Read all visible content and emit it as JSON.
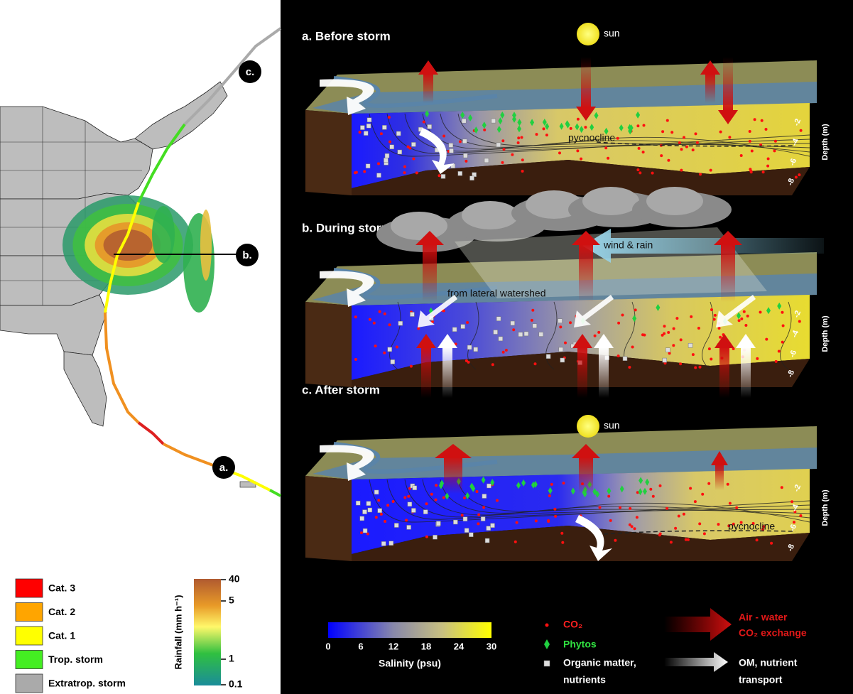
{
  "map": {
    "track_labels": [
      "c.",
      "b.",
      "a."
    ],
    "legend": [
      "Cat. 3",
      "Cat. 2",
      "Cat. 1",
      "Trop. storm",
      "Extratrop. storm"
    ],
    "rainfall_colorbar": {
      "label": "Rainfall (mm h⁻¹)",
      "ticks": [
        "40",
        "5",
        "1",
        "0.1"
      ]
    }
  },
  "panels": [
    {
      "title": "a. Before storm",
      "sun": "sun",
      "pycnocline": "pycnocline",
      "depth_label": "Depth (m)",
      "depth_ticks": [
        "-2",
        "-4",
        "-6",
        "-8"
      ]
    },
    {
      "title": "b. During storm",
      "wind": "wind & rain",
      "lateral": "from lateral watershed",
      "depth_label": "Depth (m)",
      "depth_ticks": [
        "-2",
        "-4",
        "-6",
        "-8"
      ]
    },
    {
      "title": "c. After storm",
      "sun": "sun",
      "pycnocline": "pycnocline",
      "depth_label": "Depth (m)",
      "depth_ticks": [
        "-2",
        "-4",
        "-6",
        "-8"
      ]
    }
  ],
  "legend": {
    "salinity": {
      "label": "Salinity (psu)",
      "ticks": [
        "0",
        "6",
        "12",
        "18",
        "24",
        "30"
      ]
    },
    "co2": "CO₂",
    "phytos": "Phytos",
    "om": [
      "Organic matter,",
      "nutrients"
    ],
    "air_water": [
      "Air - water",
      "CO₂ exchange"
    ],
    "transport": [
      "OM, nutrient",
      "transport"
    ]
  }
}
